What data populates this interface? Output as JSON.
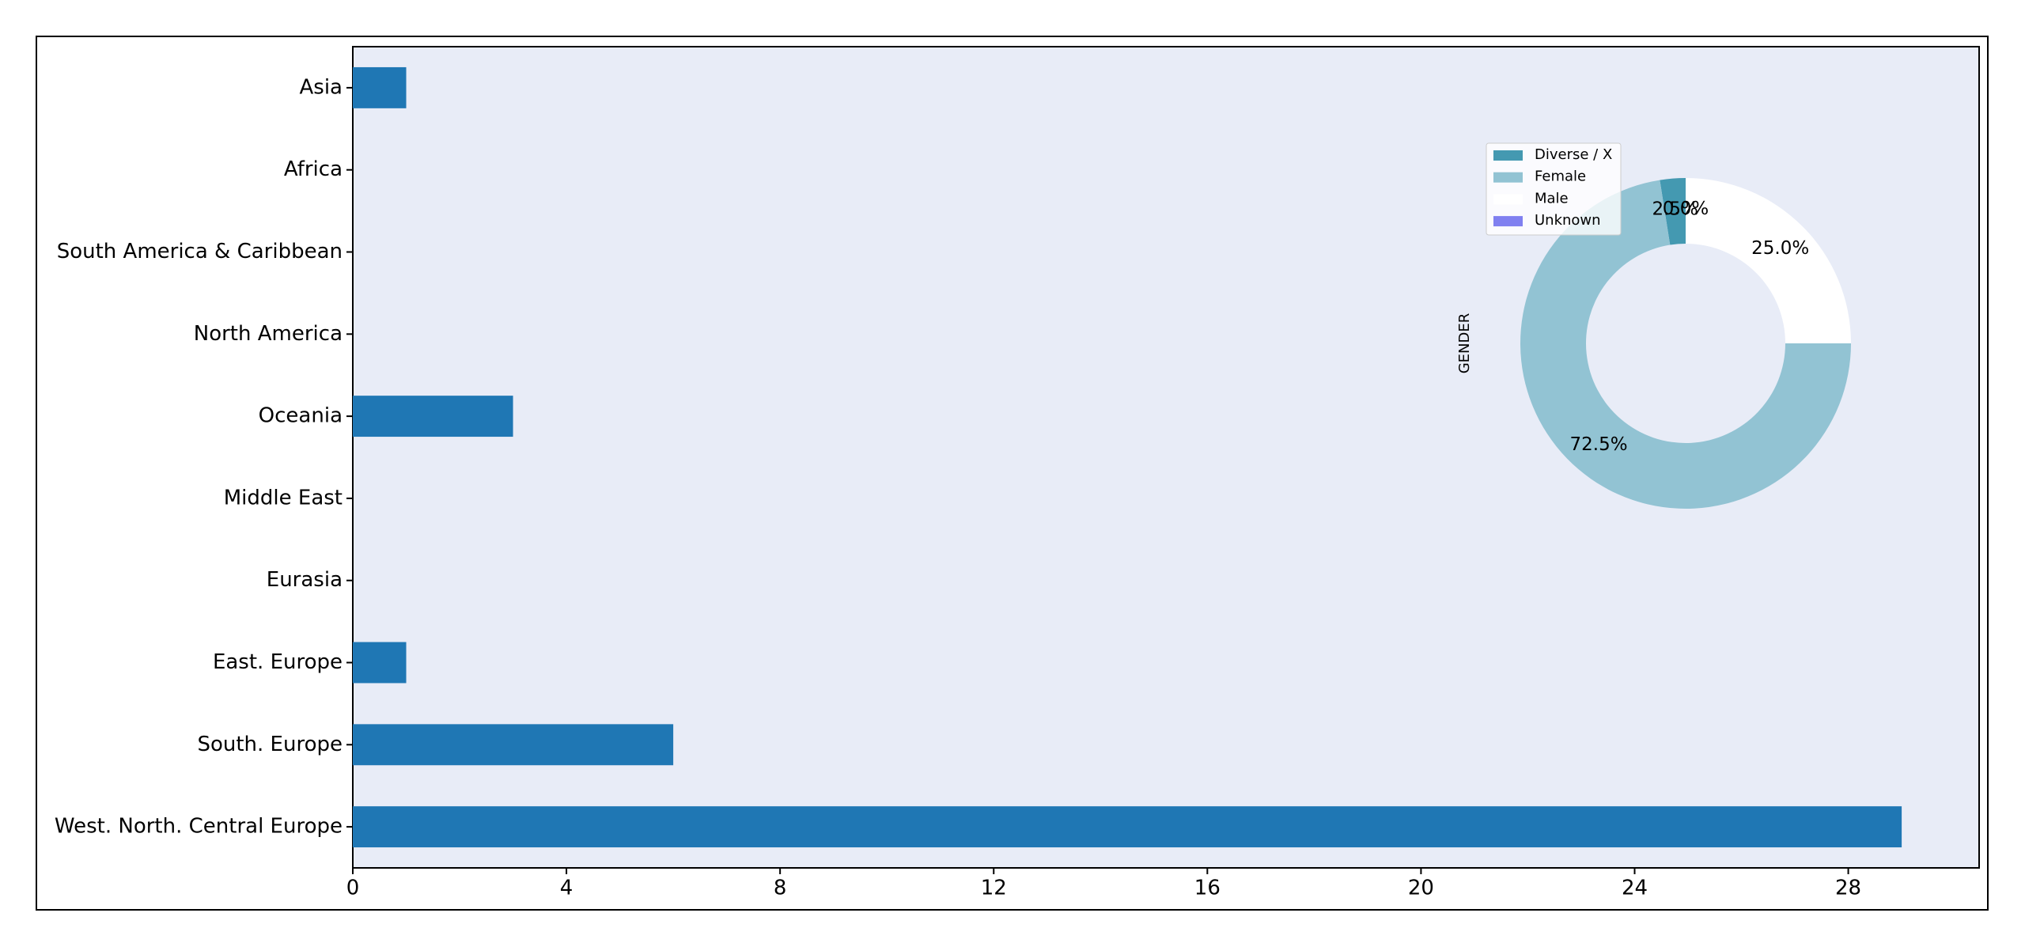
{
  "chart_data": [
    {
      "type": "barh",
      "categories": [
        "Asia",
        "Africa",
        "South America & Caribbean",
        "North America",
        "Oceania",
        "Middle East",
        "Eurasia",
        "East. Europe",
        "South. Europe",
        "West. North. Central Europe"
      ],
      "values": [
        1,
        0,
        0,
        0,
        3,
        0,
        0,
        1,
        6,
        29
      ],
      "color": "#1f77b4",
      "xlim": [
        0,
        30.45
      ],
      "xticks": [
        0,
        4,
        8,
        12,
        16,
        20,
        24,
        28
      ]
    },
    {
      "type": "donut",
      "ylabel": "GENDER",
      "categories": [
        "Diverse / X",
        "Female",
        "Male",
        "Unknown"
      ],
      "values": [
        2.5,
        72.5,
        25.0,
        0.0
      ],
      "value_labels": [
        "2.5%",
        "72.5%",
        "25.0%",
        "0.0%"
      ],
      "colors": [
        "#4499b1",
        "#92c3d3",
        "#ffffff",
        "#8080f0"
      ]
    }
  ]
}
